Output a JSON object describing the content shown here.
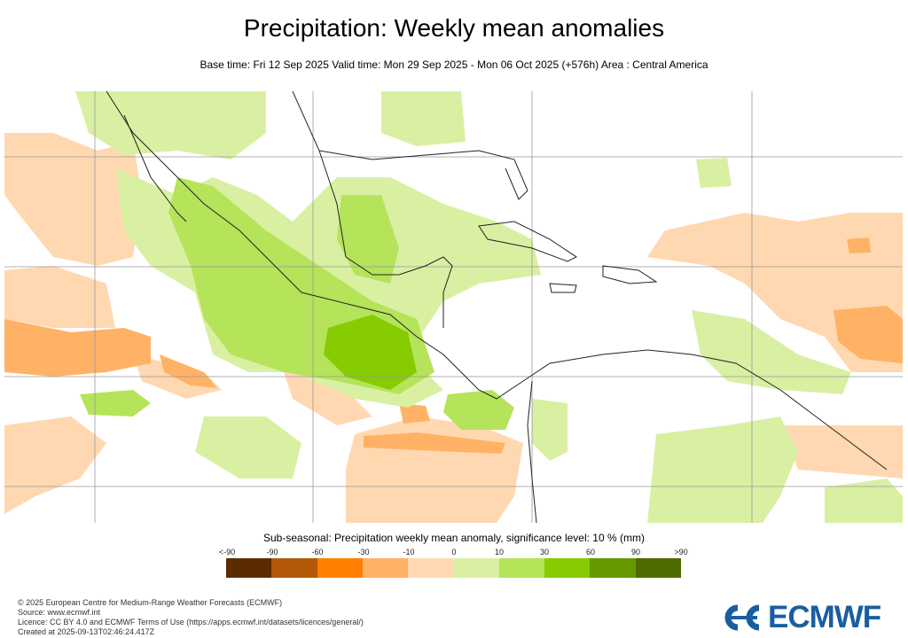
{
  "title": "Precipitation: Weekly mean anomalies",
  "subtitle": "Base time: Fri 12 Sep 2025 Valid time: Mon 29 Sep 2025 - Mon 06 Oct 2025 (+576h) Area : Central America",
  "legend": {
    "title": "Sub-seasonal: Precipitation weekly mean anomaly, significance level: 10 % (mm)",
    "labels": [
      "<-90",
      "-90",
      "-60",
      "-30",
      "-10",
      "0",
      "10",
      "30",
      "60",
      "90",
      ">90"
    ],
    "colors": [
      "#5a2c00",
      "#b35806",
      "#ff7f00",
      "#ffb266",
      "#ffd8b1",
      "#d9f0a3",
      "#b5e35a",
      "#86cc00",
      "#669900",
      "#4d6b00"
    ]
  },
  "footer": {
    "line1": "© 2025 European Centre for Medium-Range Weather Forecasts (ECMWF)",
    "line2": "Source: www.ecmwf.int",
    "line3": "Licence: CC BY 4.0 and ECMWF Terms of Use (https://apps.ecmwf.int/datasets/licences/general/)",
    "line4": "Created at 2025-09-13T02:46:24.417Z"
  },
  "logo": {
    "text": "ECMWF",
    "color": "#1a5ea0"
  }
}
